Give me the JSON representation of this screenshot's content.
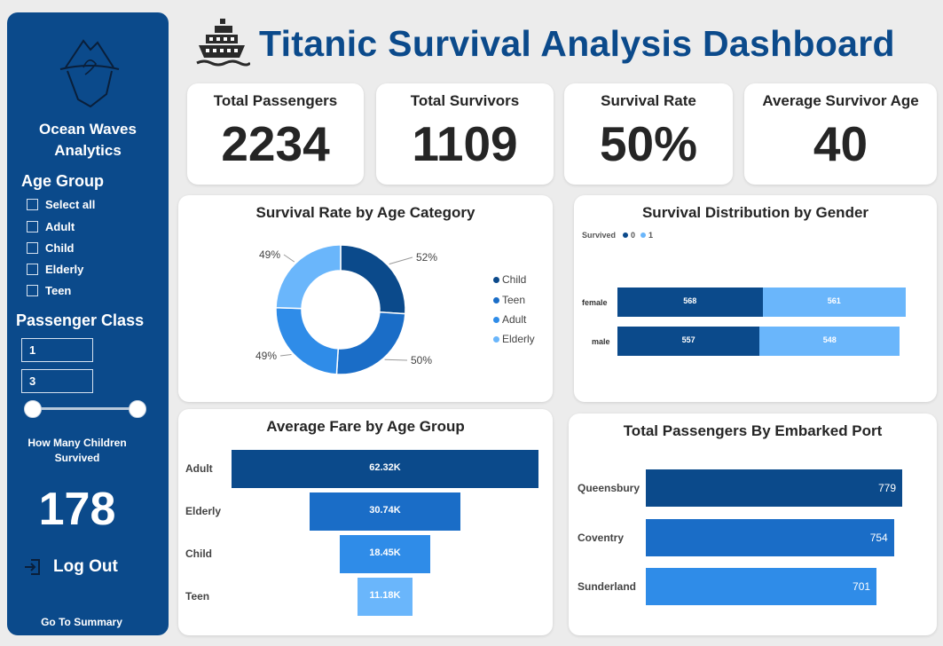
{
  "sidebar": {
    "company_line1": "Ocean Waves",
    "company_line2": "Analytics",
    "age_group_title": "Age Group",
    "age_options": [
      "Select all",
      "Adult",
      "Child",
      "Elderly",
      "Teen"
    ],
    "class_title": "Passenger Class",
    "class_min": "1",
    "class_max": "3",
    "children_label_line1": "How Many Children",
    "children_label_line2": "Survived",
    "children_value": "178",
    "logout_label": "Log Out",
    "summary_label": "Go To Summary"
  },
  "header": {
    "title": "Titanic Survival Analysis Dashboard"
  },
  "kpis": [
    {
      "label": "Total Passengers",
      "value": "2234"
    },
    {
      "label": "Total Survivors",
      "value": "1109"
    },
    {
      "label": "Survival Rate",
      "value": "50%"
    },
    {
      "label": "Average Survivor Age",
      "value": "40"
    }
  ],
  "colors": {
    "navy": "#0b4a8b",
    "blue": "#1a6dc7",
    "mid": "#2f8ce8",
    "light": "#6ab6fb",
    "sidebar": "#0b4a8b"
  },
  "chart_data": [
    {
      "type": "pie",
      "title": "Survival Rate by Age Category",
      "labels": [
        "Child",
        "Teen",
        "Adult",
        "Elderly"
      ],
      "data_labels": [
        "52%",
        "50%",
        "49%",
        "49%"
      ],
      "values": [
        52,
        50,
        49,
        49
      ],
      "legend": "right"
    },
    {
      "type": "bar",
      "title": "Survival Distribution by Gender",
      "legend_title": "Survived",
      "categories": [
        "female",
        "male"
      ],
      "series": [
        {
          "name": "0",
          "values": [
            568,
            557
          ]
        },
        {
          "name": "1",
          "values": [
            561,
            548
          ]
        }
      ],
      "orientation": "horizontal",
      "stacked": true,
      "legend": "top-left"
    },
    {
      "type": "bar",
      "title": "Average Fare by Age Group",
      "categories": [
        "Adult",
        "Elderly",
        "Child",
        "Teen"
      ],
      "values": [
        62.32,
        30.74,
        18.45,
        11.18
      ],
      "value_labels": [
        "62.32K",
        "30.74K",
        "18.45K",
        "11.18K"
      ],
      "unit": "K",
      "orientation": "funnel"
    },
    {
      "type": "bar",
      "title": "Total Passengers By Embarked Port",
      "categories": [
        "Queensbury",
        "Coventry",
        "Sunderland"
      ],
      "values": [
        779,
        754,
        701
      ],
      "orientation": "horizontal"
    }
  ]
}
